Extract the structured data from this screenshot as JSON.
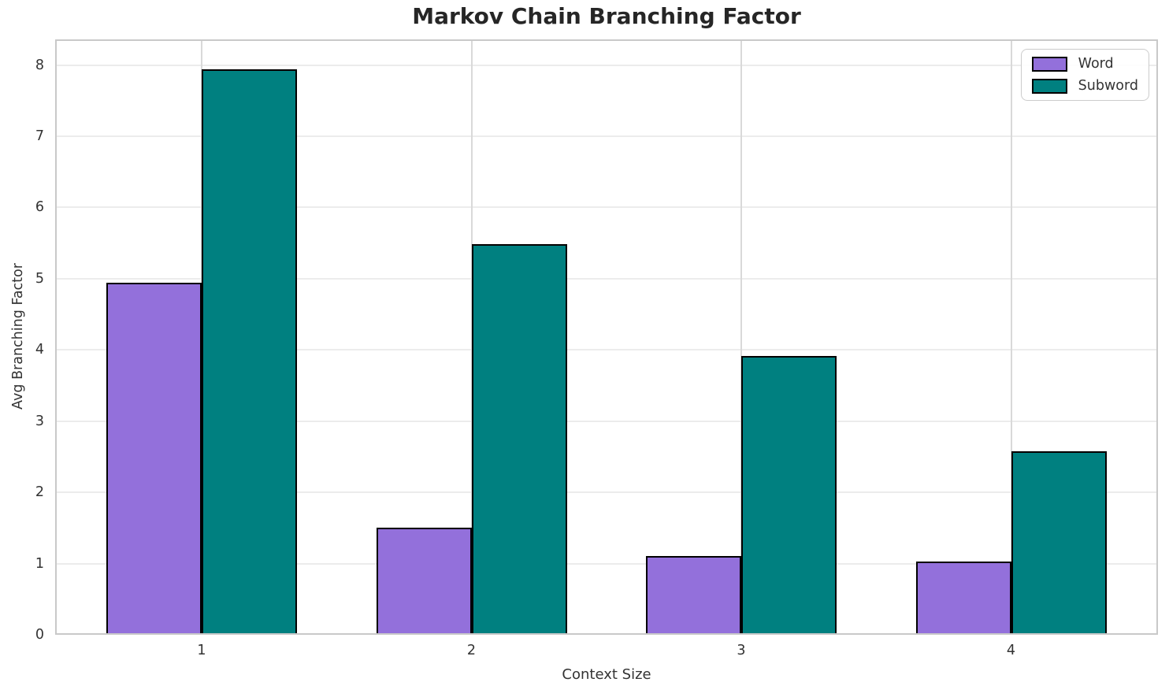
{
  "chart_data": {
    "type": "bar",
    "title": "Markov Chain Branching Factor",
    "xlabel": "Context Size",
    "ylabel": "Avg Branching Factor",
    "categories": [
      "1",
      "2",
      "3",
      "4"
    ],
    "series": [
      {
        "name": "Word",
        "color": "#9370DB",
        "values": [
          4.94,
          1.5,
          1.11,
          1.03
        ]
      },
      {
        "name": "Subword",
        "color": "#008080",
        "values": [
          7.94,
          5.49,
          3.91,
          2.58
        ]
      }
    ],
    "ylim": [
      0,
      8.36
    ],
    "yticks": [
      0,
      1,
      2,
      3,
      4,
      5,
      6,
      7,
      8
    ],
    "bar_edge_color": "#000000",
    "grid": true,
    "legend_position": "upper right",
    "colors": {
      "grid_h": "#ececec",
      "grid_v": "#d9d9d9",
      "frame": "#c9c9c9",
      "tick_text": "#333333",
      "title_text": "#262626"
    }
  }
}
